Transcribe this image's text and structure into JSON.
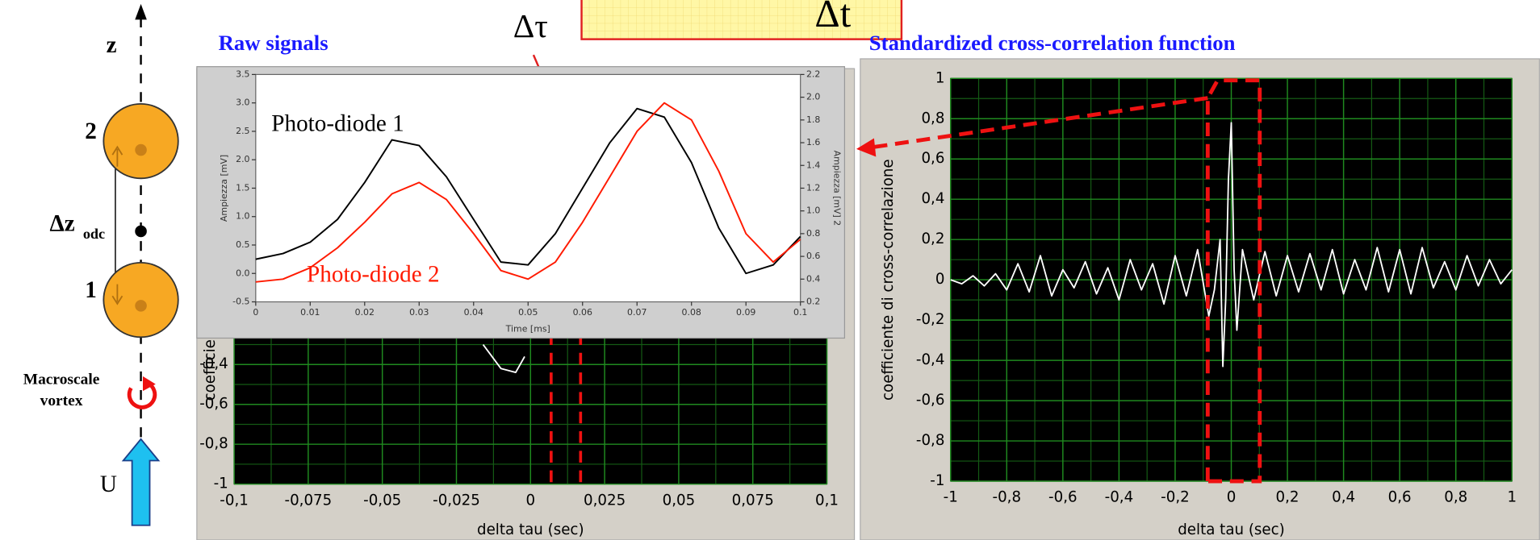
{
  "diagram": {
    "axis_label": "z",
    "bubble_labels": [
      "2",
      "1"
    ],
    "spacing_label": "Δz",
    "spacing_subscript": "odc",
    "vortex_label": [
      "Macroscale",
      "vortex"
    ],
    "flow_label": "U",
    "delay_label": "Δτ",
    "box_label": "Δt"
  },
  "chart_data": [
    {
      "type": "line",
      "title": "Raw signals",
      "xlabel": "Time [ms]",
      "ylabel": "Ampiezza [mV]",
      "y2label": "Ampiezza [mV] 2",
      "x": [
        0,
        0.005,
        0.01,
        0.015,
        0.02,
        0.025,
        0.03,
        0.035,
        0.04,
        0.045,
        0.05,
        0.055,
        0.06,
        0.065,
        0.07,
        0.075,
        0.08,
        0.085,
        0.09,
        0.095,
        0.1
      ],
      "series": [
        {
          "name": "Photo-diode 1",
          "color": "#000000",
          "values": [
            0.25,
            0.35,
            0.55,
            0.95,
            1.6,
            2.35,
            2.25,
            1.7,
            0.95,
            0.2,
            0.15,
            0.7,
            1.5,
            2.3,
            2.9,
            2.75,
            1.95,
            0.8,
            0.0,
            0.15,
            0.65
          ]
        },
        {
          "name": "Photo-diode 2",
          "color": "#ff1a00",
          "axis": "y2",
          "values": [
            0.375,
            0.4,
            0.5,
            0.675,
            0.9,
            1.15,
            1.25,
            1.1,
            0.8,
            0.475,
            0.4,
            0.55,
            0.9,
            1.3,
            1.7,
            1.95,
            1.8,
            1.35,
            0.8,
            0.55,
            0.75
          ]
        }
      ],
      "xlim": [
        0,
        0.1
      ],
      "xticks": [
        0,
        0.01,
        0.02,
        0.03,
        0.04,
        0.05,
        0.06,
        0.07,
        0.08,
        0.09,
        0.1
      ],
      "ylim": [
        -0.5,
        3.5
      ],
      "yticks": [
        -0.5,
        {
          "value": 0,
          "label": "0.0"
        },
        0.5,
        {
          "value": 1,
          "label": "1.0"
        },
        1.5,
        {
          "value": 2,
          "label": "2.0"
        },
        2.5,
        {
          "value": 3,
          "label": "3.0"
        },
        3.5
      ],
      "y2lim": [
        0.2,
        2.2
      ],
      "y2ticks": [
        0.2,
        0.4,
        0.6,
        0.8,
        {
          "value": 1,
          "label": "1.0"
        },
        1.2,
        1.4,
        1.6,
        1.8,
        {
          "value": 2,
          "label": "2.0"
        },
        2.2
      ],
      "grid": false
    },
    {
      "type": "line",
      "xlabel": "delta tau (sec)",
      "ylabel": "coefficient",
      "color": "#ffffff",
      "x": [
        -0.016,
        -0.01,
        -0.005,
        -0.002
      ],
      "values": [
        -0.3,
        -0.42,
        -0.44,
        -0.36
      ],
      "xlim": [
        -0.1,
        0.1
      ],
      "xticks": [
        {
          "value": -0.1,
          "label": "-0,1"
        },
        {
          "value": -0.075,
          "label": "-0,075"
        },
        {
          "value": -0.05,
          "label": "-0,05"
        },
        {
          "value": -0.025,
          "label": "-0,025"
        },
        0,
        {
          "value": 0.025,
          "label": "0,025"
        },
        {
          "value": 0.05,
          "label": "0,05"
        },
        {
          "value": 0.075,
          "label": "0,075"
        },
        {
          "value": 0.1,
          "label": "0,1"
        }
      ],
      "ylim": [
        -1,
        1
      ],
      "yticks": [
        -1,
        {
          "value": -0.8,
          "label": "-0,8"
        },
        {
          "value": -0.6,
          "label": "-0,6"
        },
        {
          "value": -0.4,
          "label": "-0,4"
        }
      ],
      "grid": true
    },
    {
      "type": "line",
      "title": "Standardized cross-correlation function",
      "xlabel": "delta tau (sec)",
      "ylabel": "coefficiente di cross-correlazione",
      "color": "#ffffff",
      "x": [
        -1,
        -0.96,
        -0.92,
        -0.88,
        -0.84,
        -0.8,
        -0.76,
        -0.72,
        -0.68,
        -0.64,
        -0.6,
        -0.56,
        -0.52,
        -0.48,
        -0.44,
        -0.4,
        -0.36,
        -0.32,
        -0.28,
        -0.24,
        -0.2,
        -0.16,
        -0.12,
        -0.08,
        -0.06,
        -0.04,
        -0.03,
        -0.02,
        -0.01,
        0,
        0.01,
        0.02,
        0.04,
        0.08,
        0.12,
        0.16,
        0.2,
        0.24,
        0.28,
        0.32,
        0.36,
        0.4,
        0.44,
        0.48,
        0.52,
        0.56,
        0.6,
        0.64,
        0.68,
        0.72,
        0.76,
        0.8,
        0.84,
        0.88,
        0.92,
        0.96,
        1
      ],
      "values": [
        0.0,
        -0.02,
        0.02,
        -0.03,
        0.03,
        -0.05,
        0.08,
        -0.06,
        0.12,
        -0.08,
        0.05,
        -0.04,
        0.09,
        -0.07,
        0.06,
        -0.1,
        0.1,
        -0.05,
        0.08,
        -0.12,
        0.12,
        -0.08,
        0.15,
        -0.18,
        -0.05,
        0.2,
        -0.43,
        -0.1,
        0.5,
        0.78,
        0.05,
        -0.25,
        0.15,
        -0.1,
        0.14,
        -0.08,
        0.12,
        -0.06,
        0.13,
        -0.05,
        0.15,
        -0.07,
        0.1,
        -0.05,
        0.16,
        -0.06,
        0.15,
        -0.07,
        0.16,
        -0.04,
        0.09,
        -0.05,
        0.12,
        -0.03,
        0.1,
        -0.02,
        0.05
      ],
      "xlim": [
        -1,
        1
      ],
      "xticks": [
        -1,
        {
          "value": -0.8,
          "label": "-0,8"
        },
        {
          "value": -0.6,
          "label": "-0,6"
        },
        {
          "value": -0.4,
          "label": "-0,4"
        },
        {
          "value": -0.2,
          "label": "-0,2"
        },
        0,
        {
          "value": 0.2,
          "label": "0,2"
        },
        {
          "value": 0.4,
          "label": "0,4"
        },
        {
          "value": 0.6,
          "label": "0,6"
        },
        {
          "value": 0.8,
          "label": "0,8"
        },
        1
      ],
      "ylim": [
        -1,
        1
      ],
      "yticks": [
        -1,
        {
          "value": -0.8,
          "label": "-0,8"
        },
        {
          "value": -0.6,
          "label": "-0,6"
        },
        {
          "value": -0.4,
          "label": "-0,4"
        },
        {
          "value": -0.2,
          "label": "-0,2"
        },
        0,
        {
          "value": 0.2,
          "label": "0,2"
        },
        {
          "value": 0.4,
          "label": "0,4"
        },
        {
          "value": 0.6,
          "label": "0,6"
        },
        {
          "value": 0.8,
          "label": "0,8"
        },
        1
      ],
      "grid": true
    }
  ]
}
